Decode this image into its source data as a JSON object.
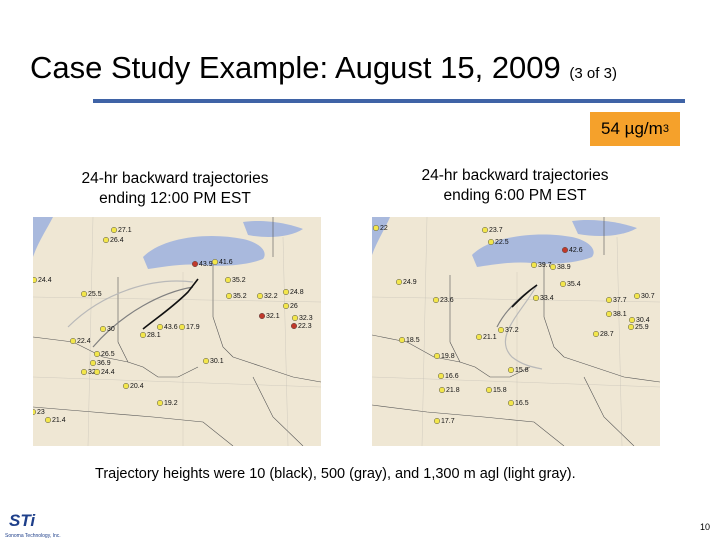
{
  "title": {
    "main": "Case Study Example:  August 15, 2009",
    "sub": "(3 of 3)"
  },
  "badge": {
    "value": "54 µg/m",
    "exp": "3",
    "color": "#f5a12b"
  },
  "panels": [
    {
      "caption_line1": "24-hr backward trajectories",
      "caption_line2": "ending 12:00 PM EST",
      "labels": [
        "27.1",
        "26.4",
        "24.4",
        "25.5",
        "43.9",
        "41.6",
        "35.2",
        "35.2",
        "32.2",
        "24.8",
        "26",
        "32.3",
        "32.1",
        "22.3",
        "28.1",
        "43.6",
        "17.9",
        "30",
        "22.4",
        "26.5",
        "36.9",
        "32",
        "24.4",
        "20.4",
        "30.1",
        "19.2",
        "21.4",
        "23"
      ]
    },
    {
      "caption_line1": "24-hr backward trajectories",
      "caption_line2": "ending 6:00 PM EST",
      "labels": [
        "22",
        "23.7",
        "22.5",
        "42.6",
        "39.7",
        "38.9",
        "24.9",
        "35.4",
        "23.6",
        "33.4",
        "37.7",
        "30.7",
        "38.1",
        "30.4",
        "28.7",
        "25.9",
        "18.5",
        "21.1",
        "37.2",
        "19.8",
        "15.8",
        "16.6",
        "21.8",
        "15.8",
        "16.5",
        "17.7"
      ]
    }
  ],
  "note": "Trajectory heights were 10 (black), 500 (gray), and 1,300 m agl (light gray).",
  "logo": {
    "text": "STi",
    "tagline": "Sonoma Technology, Inc."
  },
  "page_number": "10",
  "colors": {
    "rule": "#3f63a6",
    "map_bg": "#efe7d4",
    "lake": "#a9b9dd",
    "marker": "#f3e64c",
    "red_marker": "#c0392b"
  }
}
